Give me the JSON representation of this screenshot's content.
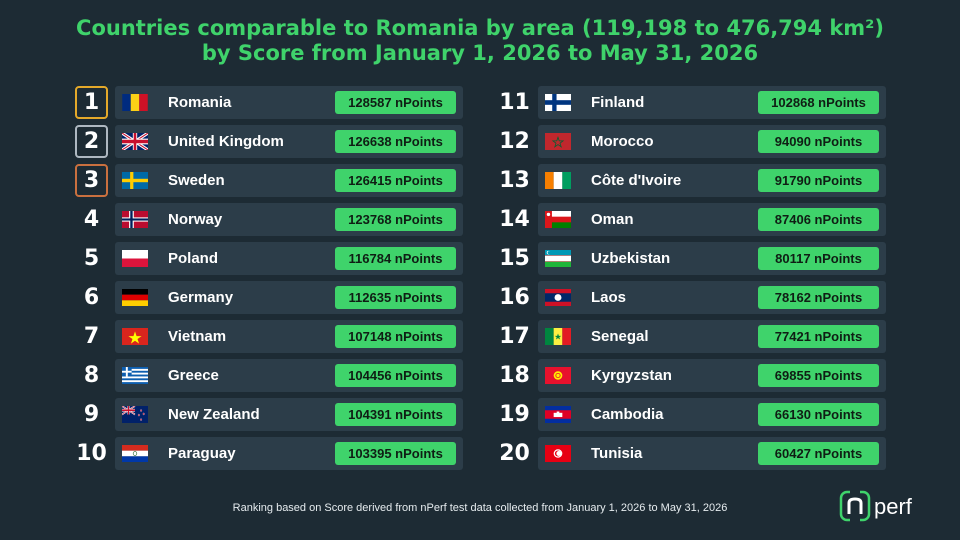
{
  "title": {
    "line1": "Countries comparable to Romania by area (119,198 to 476,794 km²)",
    "line2": "by Score from January 1, 2026 to May 31, 2026"
  },
  "rows": [
    {
      "rank": "1",
      "country": "Romania",
      "score": "128587 nPoints",
      "flag": "romania-flag-icon"
    },
    {
      "rank": "2",
      "country": "United Kingdom",
      "score": "126638 nPoints",
      "flag": "united-kingdom-flag-icon"
    },
    {
      "rank": "3",
      "country": "Sweden",
      "score": "126415 nPoints",
      "flag": "sweden-flag-icon"
    },
    {
      "rank": "4",
      "country": "Norway",
      "score": "123768 nPoints",
      "flag": "norway-flag-icon"
    },
    {
      "rank": "5",
      "country": "Poland",
      "score": "116784 nPoints",
      "flag": "poland-flag-icon"
    },
    {
      "rank": "6",
      "country": "Germany",
      "score": "112635 nPoints",
      "flag": "germany-flag-icon"
    },
    {
      "rank": "7",
      "country": "Vietnam",
      "score": "107148 nPoints",
      "flag": "vietnam-flag-icon"
    },
    {
      "rank": "8",
      "country": "Greece",
      "score": "104456 nPoints",
      "flag": "greece-flag-icon"
    },
    {
      "rank": "9",
      "country": "New Zealand",
      "score": "104391 nPoints",
      "flag": "new-zealand-flag-icon"
    },
    {
      "rank": "10",
      "country": "Paraguay",
      "score": "103395 nPoints",
      "flag": "paraguay-flag-icon"
    },
    {
      "rank": "11",
      "country": "Finland",
      "score": "102868 nPoints",
      "flag": "finland-flag-icon"
    },
    {
      "rank": "12",
      "country": "Morocco",
      "score": "94090 nPoints",
      "flag": "morocco-flag-icon"
    },
    {
      "rank": "13",
      "country": "Côte d'Ivoire",
      "score": "91790 nPoints",
      "flag": "cote-divoire-flag-icon"
    },
    {
      "rank": "14",
      "country": "Oman",
      "score": "87406 nPoints",
      "flag": "oman-flag-icon"
    },
    {
      "rank": "15",
      "country": "Uzbekistan",
      "score": "80117 nPoints",
      "flag": "uzbekistan-flag-icon"
    },
    {
      "rank": "16",
      "country": "Laos",
      "score": "78162 nPoints",
      "flag": "laos-flag-icon"
    },
    {
      "rank": "17",
      "country": "Senegal",
      "score": "77421 nPoints",
      "flag": "senegal-flag-icon"
    },
    {
      "rank": "18",
      "country": "Kyrgyzstan",
      "score": "69855 nPoints",
      "flag": "kyrgyzstan-flag-icon"
    },
    {
      "rank": "19",
      "country": "Cambodia",
      "score": "66130 nPoints",
      "flag": "cambodia-flag-icon"
    },
    {
      "rank": "20",
      "country": "Tunisia",
      "score": "60427 nPoints",
      "flag": "tunisia-flag-icon"
    }
  ],
  "footer": "Ranking based on Score derived from nPerf test data collected from January 1, 2026 to May 31, 2026",
  "logo": {
    "icon": "nperf-logo-icon",
    "text": "perf"
  },
  "colors": {
    "background": "#1d2b34",
    "card": "#2c3d49",
    "accent": "#3fd36b",
    "gold": "#e4a92a",
    "silver": "#aeb8c1",
    "bronze": "#c9703f"
  }
}
